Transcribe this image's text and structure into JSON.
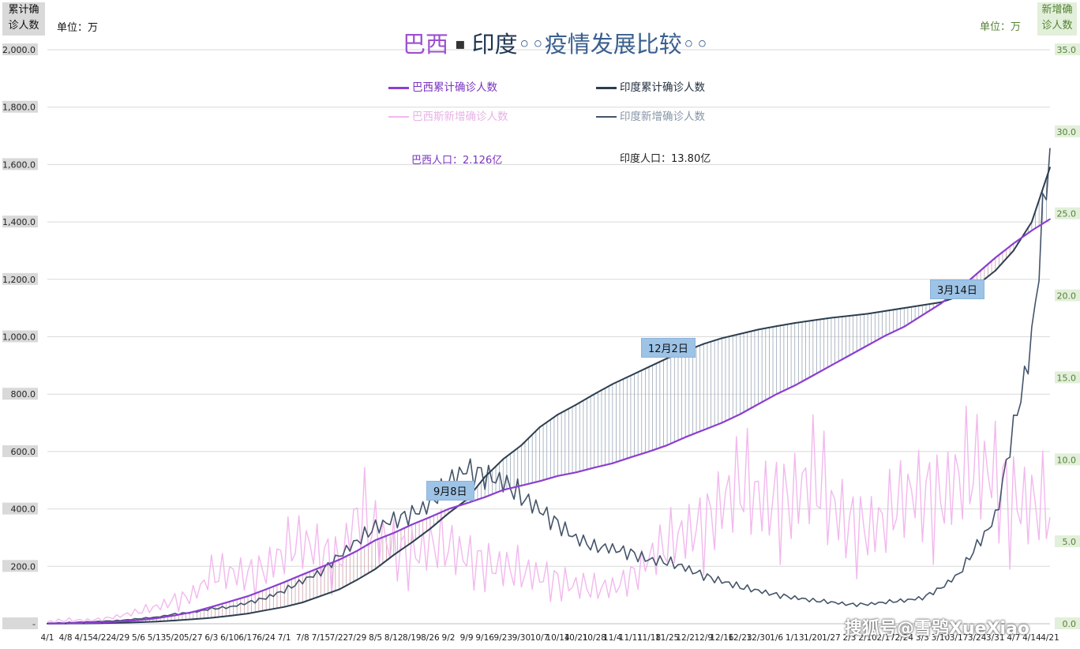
{
  "left_box": {
    "line1": "累计确",
    "line2": "诊人数"
  },
  "right_box": {
    "line1": "新增确",
    "line2": "诊人数"
  },
  "unit_left": "单位：万",
  "unit_right": "单位：万",
  "title": {
    "brazil": "巴西",
    "sep": "▪",
    "india": "印度",
    "rest": "◦◦疫情发展比较◦◦"
  },
  "legend": [
    {
      "name": "巴西累计确诊人数",
      "color": "#8b3fd0"
    },
    {
      "name": "印度累计确诊人数",
      "color": "#2c3e50"
    },
    {
      "name": "巴西斯新增确诊人数",
      "color": "#f2b8ee"
    },
    {
      "name": "印度新增确诊人数",
      "color": "#44546a"
    }
  ],
  "population": {
    "brazil": "巴西人口：2.126亿",
    "india": "印度人口：13.80亿"
  },
  "callouts": [
    "9月8日",
    "12月2日",
    "3月14日"
  ],
  "watermark": "搜狐号@雪鸮XueXiao",
  "chart_data": {
    "type": "line",
    "left_axis": {
      "ticks": [
        "-",
        "200.0",
        "400.0",
        "600.0",
        "800.0",
        "1,000.0",
        "1,200.0",
        "1,400.0",
        "1,600.0",
        "1,800.0",
        "2,000.0"
      ],
      "ylim": [
        0,
        2000
      ]
    },
    "right_axis": {
      "ticks": [
        "0.0",
        "5.0",
        "10.0",
        "15.0",
        "20.0",
        "25.0",
        "30.0",
        "35.0"
      ],
      "ylim": [
        0,
        35
      ]
    },
    "categories": [
      "4/1",
      "4/8",
      "4/15",
      "4/22",
      "4/29",
      "5/6",
      "5/13",
      "5/20",
      "5/27",
      "6/3",
      "6/10",
      "6/17",
      "6/24",
      "7/1",
      "7/8",
      "7/15",
      "7/22",
      "7/29",
      "8/5",
      "8/12",
      "8/19",
      "8/26",
      "9/2",
      "9/9",
      "9/16",
      "9/23",
      "9/30",
      "10/7",
      "10/14",
      "10/21",
      "10/28",
      "11/4",
      "11/11",
      "11/18",
      "11/25",
      "12/2",
      "12/9",
      "12/16",
      "12/23",
      "12/30",
      "1/6",
      "1/13",
      "1/20",
      "1/27",
      "2/3",
      "2/10",
      "2/17",
      "2/24",
      "3/3",
      "3/10",
      "3/17",
      "3/24",
      "3/31",
      "4/7",
      "4/14",
      "4/21"
    ],
    "series": [
      {
        "name": "巴西累计确诊人数",
        "axis": "left",
        "values": [
          0.7,
          1.5,
          2.8,
          4.6,
          7.9,
          12.6,
          19.1,
          29.1,
          41.1,
          58.5,
          77.3,
          96.0,
          120.0,
          144.9,
          171.3,
          197.1,
          222.7,
          254.3,
          291.3,
          316.4,
          345.5,
          371.7,
          399.7,
          419.7,
          440.9,
          465.9,
          481.1,
          496.9,
          515.0,
          527.3,
          544.0,
          559.0,
          580.0,
          600.0,
          622.0,
          650.0,
          675.0,
          700.0,
          730.0,
          765.0,
          800.0,
          830.0,
          865.0,
          900.0,
          935.0,
          970.0,
          1005.0,
          1035.0,
          1075.0,
          1115.0,
          1165.0,
          1220.0,
          1275.0,
          1325.0,
          1370.0,
          1410.0
        ]
      },
      {
        "name": "印度累计确诊人数",
        "axis": "left",
        "values": [
          0.2,
          0.5,
          1.2,
          2.0,
          3.4,
          5.3,
          7.8,
          11.2,
          15.8,
          20.7,
          27.6,
          35.5,
          47.3,
          58.5,
          74.2,
          96.9,
          119.3,
          153.1,
          190.8,
          239.6,
          283.6,
          331.0,
          384.5,
          432.5,
          511.8,
          573.2,
          621.6,
          684.5,
          728.8,
          763.0,
          800.0,
          835.0,
          865.0,
          895.0,
          925.0,
          950.0,
          975.0,
          995.0,
          1010.0,
          1025.0,
          1037.0,
          1048.0,
          1057.0,
          1066.0,
          1073.0,
          1080.0,
          1090.0,
          1100.0,
          1110.0,
          1120.0,
          1140.0,
          1180.0,
          1230.0,
          1300.0,
          1400.0,
          1590.0
        ]
      },
      {
        "name": "巴西斯新增确诊人数",
        "axis": "right",
        "values": [
          0.1,
          0.2,
          0.2,
          0.3,
          0.5,
          0.7,
          1.0,
          1.5,
          1.8,
          2.8,
          3.0,
          3.2,
          3.5,
          4.2,
          4.8,
          4.6,
          4.0,
          6.5,
          5.3,
          4.9,
          4.5,
          4.6,
          4.4,
          4.2,
          3.9,
          3.3,
          2.9,
          3.0,
          2.8,
          2.3,
          2.0,
          2.2,
          3.0,
          4.0,
          4.5,
          5.5,
          6.5,
          7.5,
          8.0,
          7.5,
          8.0,
          8.0,
          8.5,
          7.0,
          6.5,
          6.0,
          6.0,
          7.5,
          8.5,
          8.0,
          8.5,
          9.0,
          9.5,
          8.0,
          7.0,
          6.5
        ]
      },
      {
        "name": "印度新增确诊人数",
        "axis": "right",
        "values": [
          0.03,
          0.05,
          0.1,
          0.15,
          0.2,
          0.3,
          0.4,
          0.6,
          0.7,
          0.9,
          1.0,
          1.3,
          1.6,
          2.0,
          2.6,
          3.2,
          4.2,
          5.0,
          5.8,
          6.4,
          6.8,
          7.2,
          8.5,
          9.5,
          9.2,
          8.6,
          7.6,
          7.0,
          6.2,
          5.2,
          4.6,
          4.6,
          4.4,
          3.9,
          3.7,
          3.4,
          3.0,
          2.6,
          2.2,
          2.0,
          1.8,
          1.6,
          1.4,
          1.3,
          1.2,
          1.2,
          1.3,
          1.4,
          1.6,
          2.2,
          3.0,
          4.7,
          6.5,
          12.0,
          17.0,
          29.0
        ]
      }
    ],
    "grid": true,
    "legend_placement": "top-center"
  }
}
